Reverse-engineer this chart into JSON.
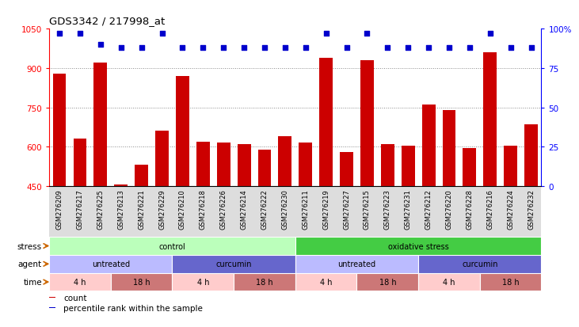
{
  "title": "GDS3342 / 217998_at",
  "samples": [
    "GSM276209",
    "GSM276217",
    "GSM276225",
    "GSM276213",
    "GSM276221",
    "GSM276229",
    "GSM276210",
    "GSM276218",
    "GSM276226",
    "GSM276214",
    "GSM276222",
    "GSM276230",
    "GSM276211",
    "GSM276219",
    "GSM276227",
    "GSM276215",
    "GSM276223",
    "GSM276231",
    "GSM276212",
    "GSM276220",
    "GSM276228",
    "GSM276216",
    "GSM276224",
    "GSM276232"
  ],
  "counts": [
    880,
    630,
    920,
    455,
    530,
    660,
    870,
    620,
    615,
    610,
    590,
    640,
    615,
    940,
    580,
    930,
    610,
    605,
    760,
    740,
    595,
    960,
    605,
    685
  ],
  "percentile": [
    97,
    97,
    90,
    88,
    88,
    97,
    88,
    88,
    88,
    88,
    88,
    88,
    88,
    97,
    88,
    97,
    88,
    88,
    88,
    88,
    88,
    97,
    88,
    88
  ],
  "ylim": [
    450,
    1050
  ],
  "yticks": [
    450,
    600,
    750,
    900,
    1050
  ],
  "right_yticks": [
    0,
    25,
    50,
    75,
    100
  ],
  "right_ylim": [
    0,
    100
  ],
  "bar_color": "#cc0000",
  "dot_color": "#0000cc",
  "grid_color": "#888888",
  "chart_bg": "#ffffff",
  "label_bg": "#dddddd",
  "stress_groups": [
    {
      "label": "control",
      "start": 0,
      "end": 12,
      "color": "#bbffbb"
    },
    {
      "label": "oxidative stress",
      "start": 12,
      "end": 24,
      "color": "#44cc44"
    }
  ],
  "agent_groups": [
    {
      "label": "untreated",
      "start": 0,
      "end": 6,
      "color": "#bbbbff"
    },
    {
      "label": "curcumin",
      "start": 6,
      "end": 12,
      "color": "#6666cc"
    },
    {
      "label": "untreated",
      "start": 12,
      "end": 18,
      "color": "#bbbbff"
    },
    {
      "label": "curcumin",
      "start": 18,
      "end": 24,
      "color": "#6666cc"
    }
  ],
  "time_groups": [
    {
      "label": "4 h",
      "start": 0,
      "end": 3,
      "color": "#ffcccc"
    },
    {
      "label": "18 h",
      "start": 3,
      "end": 6,
      "color": "#cc7777"
    },
    {
      "label": "4 h",
      "start": 6,
      "end": 9,
      "color": "#ffcccc"
    },
    {
      "label": "18 h",
      "start": 9,
      "end": 12,
      "color": "#cc7777"
    },
    {
      "label": "4 h",
      "start": 12,
      "end": 15,
      "color": "#ffcccc"
    },
    {
      "label": "18 h",
      "start": 15,
      "end": 18,
      "color": "#cc7777"
    },
    {
      "label": "4 h",
      "start": 18,
      "end": 21,
      "color": "#ffcccc"
    },
    {
      "label": "18 h",
      "start": 21,
      "end": 24,
      "color": "#cc7777"
    }
  ],
  "legend_items": [
    {
      "color": "#cc0000",
      "label": "count"
    },
    {
      "color": "#0000cc",
      "label": "percentile rank within the sample"
    }
  ]
}
